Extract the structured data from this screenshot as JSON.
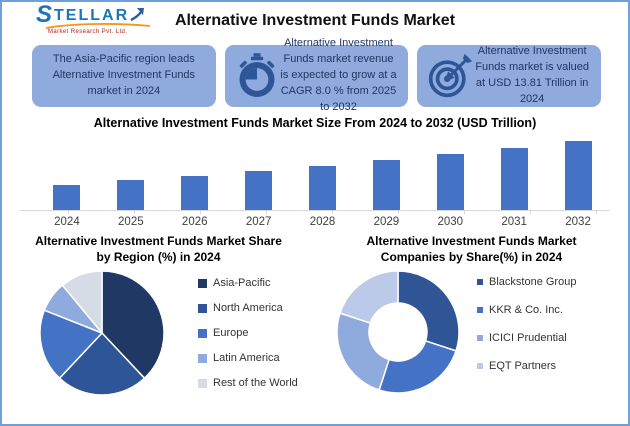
{
  "header": {
    "logo": {
      "brand": "STELLAR",
      "tagline": "Market Research Pvt. Ltd."
    },
    "title": "Alternative Investment Funds Market"
  },
  "highlight_cards": [
    {
      "icon": null,
      "text": "The Asia-Pacific region leads Alternative Investment Funds market in 2024"
    },
    {
      "icon": "stopwatch-icon",
      "text": "Alternative Investment Funds market revenue is expected to grow at a CAGR 8.0 % from 2025 to 2032"
    },
    {
      "icon": "target-icon",
      "text": "Alternative Investment Funds market is valued at USD 13.81 Trillion in 2024"
    }
  ],
  "colors": {
    "frame_border": "#6FA0D8",
    "card_bg": "#8FAADC",
    "card_text": "#1F3864",
    "card_icon": "#2E5597",
    "bar_fill": "#4472C4",
    "axis_line": "#D9D9D9",
    "axis_label": "#404040",
    "logo_blue": "#1B75BC",
    "logo_orange": "#F7941D",
    "tagline_red": "#B02318"
  },
  "chart_data": [
    {
      "type": "bar",
      "title": "Alternative Investment Funds Market Size From 2024 to 2032 (USD Trillion)",
      "categories": [
        "2024",
        "2025",
        "2026",
        "2027",
        "2028",
        "2029",
        "2030",
        "2031",
        "2032"
      ],
      "values": [
        13.81,
        14.91,
        16.11,
        17.4,
        18.79,
        20.29,
        21.92,
        23.67,
        25.57
      ],
      "xlabel": "",
      "ylabel": "USD Trillion",
      "ylim": [
        7,
        26
      ],
      "grid": false,
      "bar_color": "#4472C4",
      "data_labels": false
    },
    {
      "type": "pie",
      "title": "Alternative Investment Funds Market Share by Region (%) in 2024",
      "donut": false,
      "legend_position": "right",
      "segments": [
        {
          "label": "Asia-Pacific",
          "value": 38,
          "color": "#1F3864"
        },
        {
          "label": "North America",
          "value": 24,
          "color": "#2E5597"
        },
        {
          "label": "Europe",
          "value": 19,
          "color": "#4472C4"
        },
        {
          "label": "Latin America",
          "value": 8,
          "color": "#8FAADC"
        },
        {
          "label": "Rest of the World",
          "value": 11,
          "color": "#D6DCE5"
        }
      ]
    },
    {
      "type": "pie",
      "title": "Alternative Investment Funds Market Companies by Share(%) in 2024",
      "donut": true,
      "legend_position": "right",
      "segments": [
        {
          "label": "Blackstone Group",
          "value": 30,
          "color": "#2F5597"
        },
        {
          "label": "KKR & Co. Inc.",
          "value": 25,
          "color": "#4472C4"
        },
        {
          "label": "ICICI Prudential",
          "value": 25,
          "color": "#8FAADC"
        },
        {
          "label": "EQT Partners",
          "value": 20,
          "color": "#BCC9E8"
        }
      ]
    }
  ]
}
